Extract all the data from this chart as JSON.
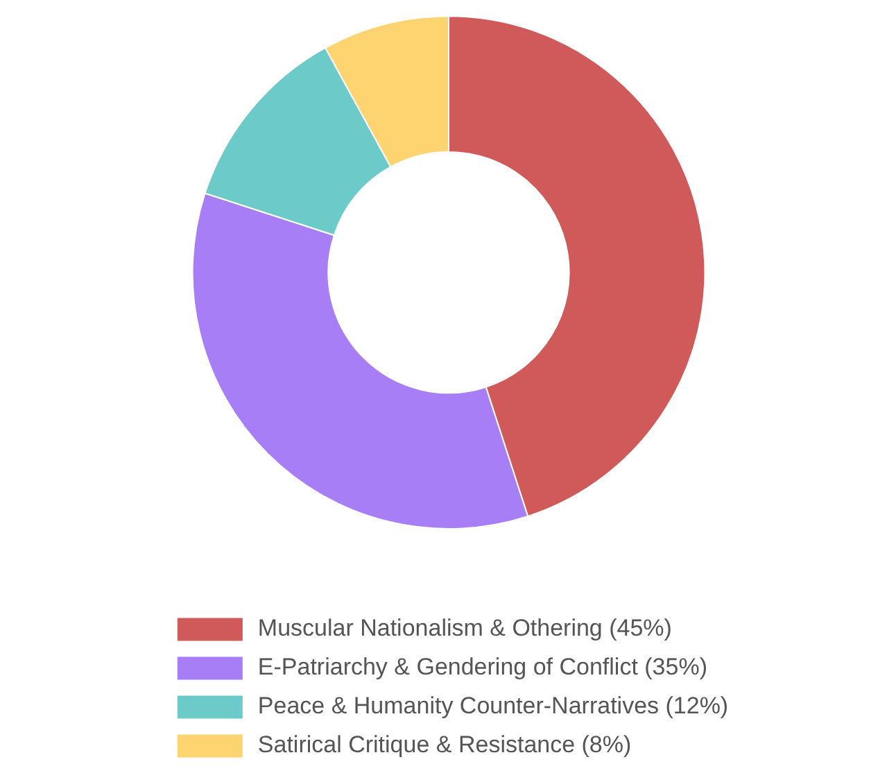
{
  "chart_data": {
    "type": "donut",
    "categories": [
      "Muscular Nationalism & Othering (45%)",
      "E-Patriarchy & Gendering of Conflict (35%)",
      "Peace & Humanity Counter-Narratives (12%)",
      "Satirical Critique & Resistance (8%)"
    ],
    "values": [
      45,
      35,
      12,
      8
    ],
    "colors": [
      "#d05a5a",
      "#a77ef5",
      "#6ccbc9",
      "#fdd470"
    ],
    "legend": "bottom"
  }
}
